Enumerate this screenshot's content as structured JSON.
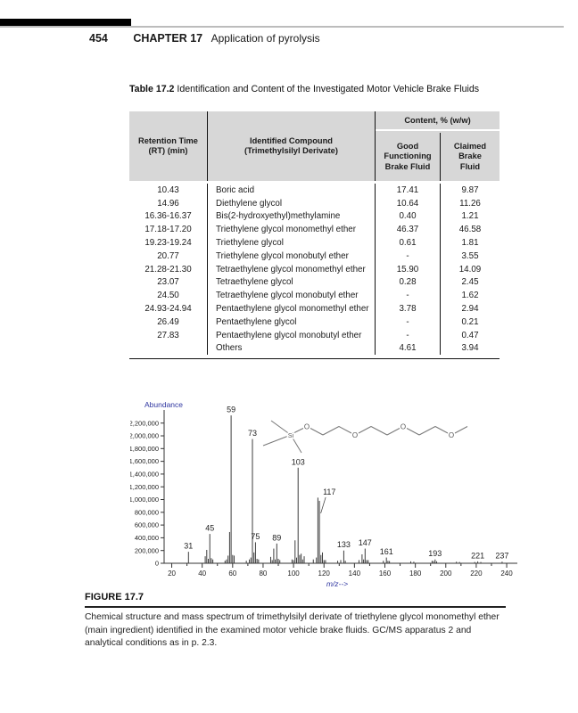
{
  "page": {
    "page_number": "454",
    "chapter_label": "CHAPTER 17",
    "chapter_title": "Application of pyrolysis"
  },
  "table": {
    "label": "Table 17.2",
    "title": "Identification and Content of the Investigated Motor Vehicle Brake Fluids",
    "span_header": "Content, % (w/w)",
    "columns": [
      "Retention Time\n(RT) (min)",
      "Identified Compound\n(Trimethylsilyl Derivate)",
      "Good\nFunctioning\nBrake Fluid",
      "Claimed\nBrake\nFluid"
    ],
    "rows": [
      [
        "10.43",
        "Boric acid",
        "17.41",
        "9.87"
      ],
      [
        "14.96",
        "Diethylene glycol",
        "10.64",
        "11.26"
      ],
      [
        "16.36-16.37",
        "Bis(2-hydroxyethyl)methylamine",
        "0.40",
        "1.21"
      ],
      [
        "17.18-17.20",
        "Triethylene glycol monomethyl ether",
        "46.37",
        "46.58"
      ],
      [
        "19.23-19.24",
        "Triethylene glycol",
        "0.61",
        "1.81"
      ],
      [
        "20.77",
        "Triethylene glycol monobutyl ether",
        "-",
        "3.55"
      ],
      [
        "21.28-21.30",
        "Tetraethylene glycol monomethyl ether",
        "15.90",
        "14.09"
      ],
      [
        "23.07",
        "Tetraethylene glycol",
        "0.28",
        "2.45"
      ],
      [
        "24.50",
        "Tetraethylene glycol monobutyl ether",
        "-",
        "1.62"
      ],
      [
        "24.93-24.94",
        "Pentaethylene glycol monomethyl ether",
        "3.78",
        "2.94"
      ],
      [
        "26.49",
        "Pentaethylene glycol",
        "-",
        "0.21"
      ],
      [
        "27.83",
        "Pentaethylene glycol monobutyl ether",
        "-",
        "0.47"
      ],
      [
        "",
        "Others",
        "4.61",
        "3.94"
      ]
    ]
  },
  "chart_data": {
    "type": "bar",
    "subtype": "mass-spectrum",
    "ylabel": "Abundance",
    "xlabel": "m/z-->",
    "xlim": [
      15,
      247
    ],
    "ylim": [
      0,
      2350000
    ],
    "yticks": [
      0,
      200000,
      400000,
      600000,
      800000,
      1000000,
      1200000,
      1400000,
      1600000,
      1800000,
      2000000,
      2200000
    ],
    "xticks": [
      20,
      40,
      60,
      80,
      100,
      120,
      140,
      160,
      180,
      200,
      220,
      240
    ],
    "grid": false,
    "peaks": [
      [
        31,
        180000
      ],
      [
        42,
        110000
      ],
      [
        43,
        210000
      ],
      [
        44,
        70000
      ],
      [
        45,
        460000
      ],
      [
        46,
        80000
      ],
      [
        47,
        60000
      ],
      [
        55,
        40000
      ],
      [
        56,
        60000
      ],
      [
        57,
        120000
      ],
      [
        58,
        490000
      ],
      [
        59,
        2320000
      ],
      [
        60,
        130000
      ],
      [
        61,
        120000
      ],
      [
        69,
        40000
      ],
      [
        71,
        60000
      ],
      [
        72,
        90000
      ],
      [
        73,
        1950000
      ],
      [
        74,
        170000
      ],
      [
        75,
        330000
      ],
      [
        76,
        70000
      ],
      [
        77,
        60000
      ],
      [
        85,
        100000
      ],
      [
        86,
        50000
      ],
      [
        87,
        230000
      ],
      [
        88,
        60000
      ],
      [
        89,
        310000
      ],
      [
        90,
        70000
      ],
      [
        91,
        50000
      ],
      [
        99,
        60000
      ],
      [
        100,
        50000
      ],
      [
        101,
        360000
      ],
      [
        102,
        90000
      ],
      [
        103,
        1500000
      ],
      [
        104,
        130000
      ],
      [
        105,
        150000
      ],
      [
        106,
        60000
      ],
      [
        107,
        110000
      ],
      [
        113,
        60000
      ],
      [
        115,
        90000
      ],
      [
        116,
        1030000
      ],
      [
        117,
        980000
      ],
      [
        118,
        130000
      ],
      [
        119,
        170000
      ],
      [
        120,
        50000
      ],
      [
        121,
        50000
      ],
      [
        129,
        40000
      ],
      [
        131,
        50000
      ],
      [
        133,
        200000
      ],
      [
        134,
        40000
      ],
      [
        143,
        50000
      ],
      [
        145,
        140000
      ],
      [
        146,
        60000
      ],
      [
        147,
        230000
      ],
      [
        148,
        50000
      ],
      [
        149,
        50000
      ],
      [
        159,
        40000
      ],
      [
        161,
        90000
      ],
      [
        162,
        40000
      ],
      [
        163,
        35000
      ],
      [
        177,
        30000
      ],
      [
        179,
        25000
      ],
      [
        191,
        40000
      ],
      [
        192,
        35000
      ],
      [
        193,
        60000
      ],
      [
        194,
        30000
      ],
      [
        207,
        25000
      ],
      [
        209,
        20000
      ],
      [
        219,
        20000
      ],
      [
        221,
        30000
      ],
      [
        223,
        20000
      ],
      [
        237,
        25000
      ]
    ],
    "labeled_peaks": [
      {
        "m": 31
      },
      {
        "m": 45
      },
      {
        "m": 59
      },
      {
        "m": 73
      },
      {
        "m": 75
      },
      {
        "m": 89
      },
      {
        "m": 103
      },
      {
        "m": 117,
        "pointer": true
      },
      {
        "m": 133
      },
      {
        "m": 147
      },
      {
        "m": 161
      },
      {
        "m": 193
      },
      {
        "m": 221
      },
      {
        "m": 237
      }
    ],
    "colors": {
      "peak": "#3c3c3c",
      "axis": "#333333",
      "axis_label_blue": "#2f36a0",
      "peak_label": "#222222"
    }
  },
  "figure": {
    "label": "FIGURE 17.7",
    "caption": "Chemical structure and mass spectrum of trimethylsilyl derivate of triethylene glycol monomethyl ether (main ingredient) identified in the examined motor vehicle brake fluids. GC/MS apparatus 2 and analytical conditions as in p. 2.3.",
    "structure": {
      "atoms": [
        "Si",
        "O",
        "O",
        "O",
        "O"
      ]
    }
  }
}
